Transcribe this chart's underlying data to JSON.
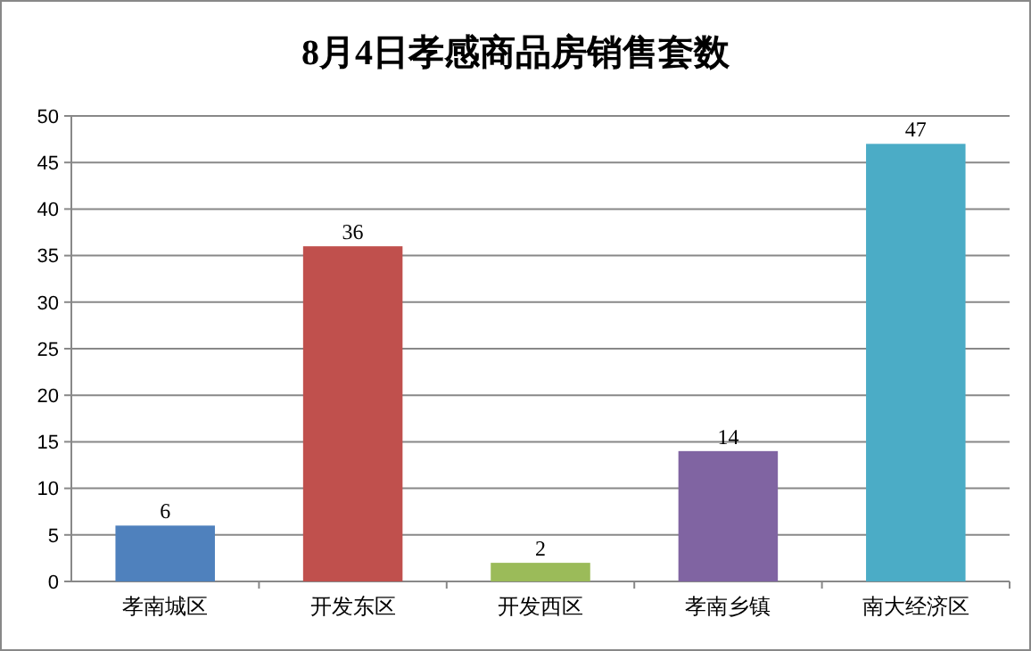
{
  "chart_data": {
    "type": "bar",
    "title": "8月4日孝感商品房销售套数",
    "categories": [
      "孝南城区",
      "开发东区",
      "开发西区",
      "孝南乡镇",
      "南大经济区"
    ],
    "values": [
      6,
      36,
      2,
      14,
      47
    ],
    "colors": [
      "#4f81bd",
      "#c0504d",
      "#9bbb59",
      "#8064a2",
      "#4bacc6"
    ],
    "ylim": [
      0,
      50
    ],
    "yticks": [
      0,
      5,
      10,
      15,
      20,
      25,
      30,
      35,
      40,
      45,
      50
    ],
    "grid": "y",
    "data_labels": true
  }
}
